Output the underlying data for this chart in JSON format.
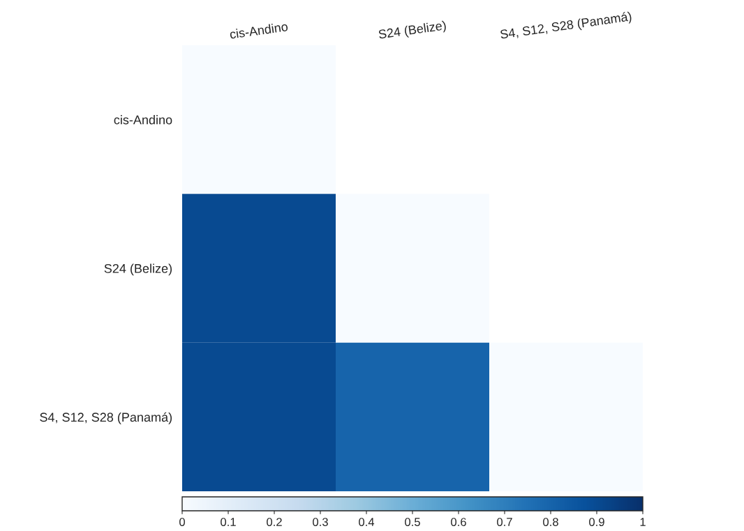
{
  "chart_data": {
    "type": "heatmap",
    "categories": [
      "cis-Andino",
      "S24 (Belize)",
      "S4, S12, S28 (Panamá)"
    ],
    "y_categories": [
      "cis-Andino",
      "S24 (Belize)",
      "S4, S12, S28 (Panamá)"
    ],
    "cells": [
      [
        0,
        null,
        null
      ],
      [
        0.9,
        0,
        null
      ],
      [
        0.9,
        0.8,
        0
      ]
    ],
    "clim": [
      0,
      1
    ],
    "cticks": [
      0,
      0.1,
      0.2,
      0.3,
      0.4,
      0.5,
      0.6,
      0.7,
      0.8,
      0.9,
      1
    ]
  }
}
